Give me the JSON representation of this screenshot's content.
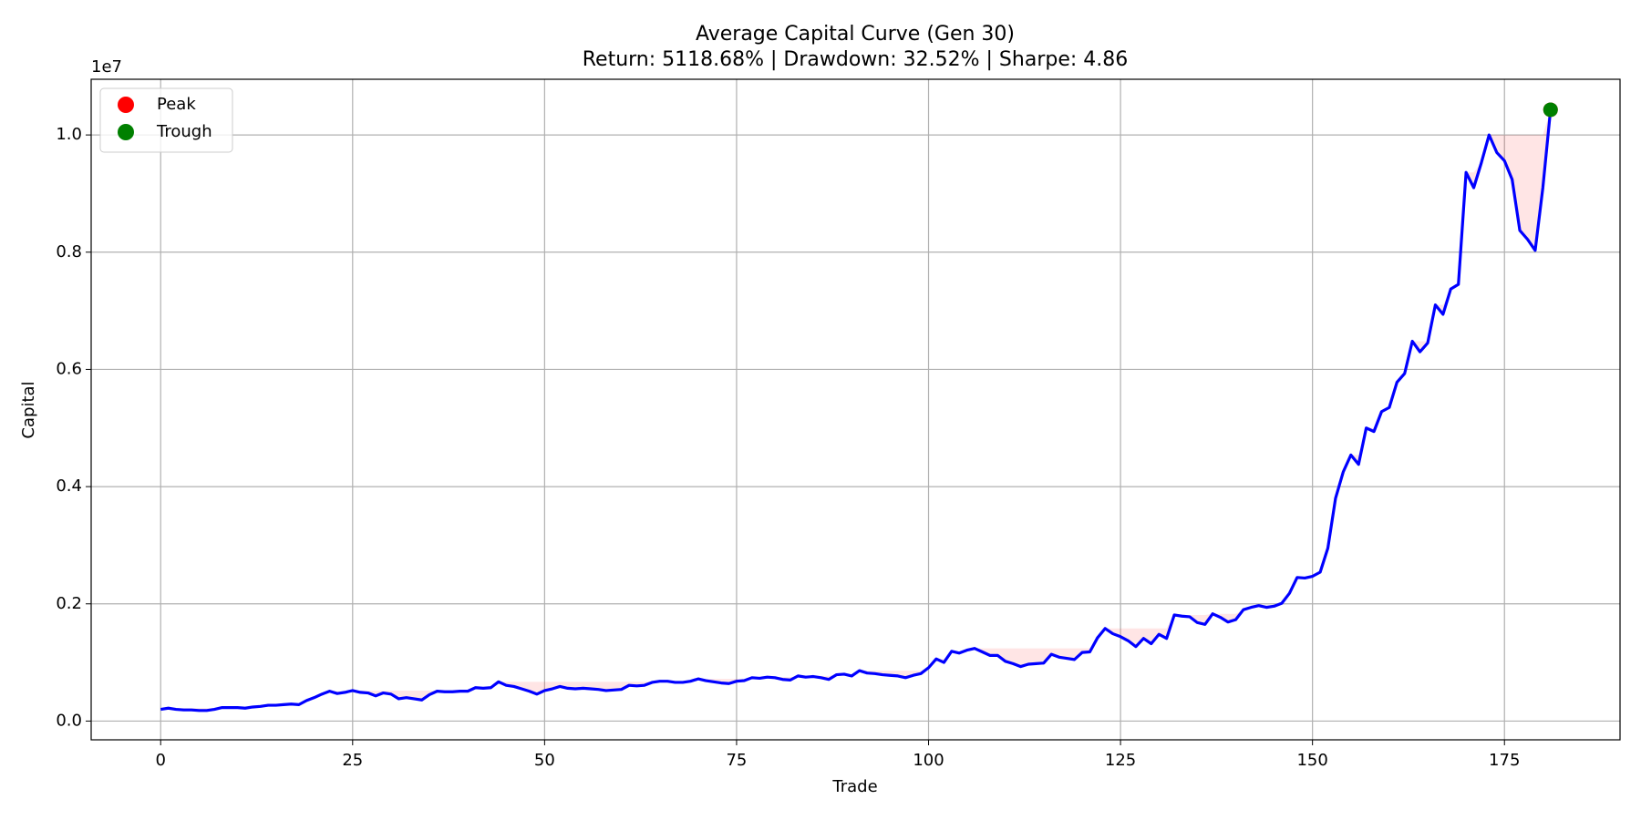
{
  "chart_data": {
    "type": "line",
    "title": "Average Capital Curve (Gen 30)",
    "subtitle": "Return: 5118.68% | Drawdown: 32.52% | Sharpe: 4.86",
    "x_label": "Trade",
    "y_label": "Capital",
    "y_offset_label": "1e7",
    "xlim": [
      -9.05,
      190.05
    ],
    "xticks": [
      0,
      25,
      50,
      75,
      100,
      125,
      150,
      175
    ],
    "ylim": [
      -0.032,
      1.095
    ],
    "yticks": [
      {
        "value": 0,
        "label": "0.0"
      },
      0.2,
      0.4,
      0.6,
      0.8,
      {
        "value": 1,
        "label": "1.0"
      }
    ],
    "grid": true,
    "legend": "upper left",
    "drawdown_fill": {
      "color": "red",
      "alpha": 0.1
    },
    "series": [
      {
        "color": "blue",
        "values": [
          0.02,
          0.022,
          0.02,
          0.019,
          0.019,
          0.018,
          0.018,
          0.02,
          0.023,
          0.023,
          0.023,
          0.022,
          0.024,
          0.025,
          0.027,
          0.027,
          0.028,
          0.029,
          0.028,
          0.035,
          0.04,
          0.046,
          0.051,
          0.047,
          0.049,
          0.052,
          0.049,
          0.048,
          0.043,
          0.048,
          0.046,
          0.038,
          0.04,
          0.038,
          0.036,
          0.045,
          0.051,
          0.05,
          0.05,
          0.051,
          0.051,
          0.057,
          0.056,
          0.057,
          0.067,
          0.061,
          0.059,
          0.055,
          0.051,
          0.046,
          0.052,
          0.055,
          0.059,
          0.056,
          0.055,
          0.056,
          0.055,
          0.054,
          0.052,
          0.053,
          0.054,
          0.061,
          0.06,
          0.061,
          0.066,
          0.068,
          0.068,
          0.066,
          0.066,
          0.068,
          0.072,
          0.069,
          0.067,
          0.065,
          0.064,
          0.068,
          0.069,
          0.074,
          0.073,
          0.075,
          0.074,
          0.071,
          0.07,
          0.077,
          0.075,
          0.076,
          0.074,
          0.071,
          0.079,
          0.08,
          0.077,
          0.086,
          0.082,
          0.081,
          0.079,
          0.078,
          0.077,
          0.074,
          0.078,
          0.081,
          0.091,
          0.106,
          0.1,
          0.119,
          0.116,
          0.121,
          0.124,
          0.118,
          0.112,
          0.112,
          0.102,
          0.098,
          0.093,
          0.097,
          0.098,
          0.099,
          0.114,
          0.109,
          0.107,
          0.105,
          0.117,
          0.118,
          0.142,
          0.158,
          0.149,
          0.144,
          0.137,
          0.127,
          0.141,
          0.132,
          0.148,
          0.141,
          0.181,
          0.179,
          0.178,
          0.168,
          0.165,
          0.183,
          0.177,
          0.169,
          0.173,
          0.19,
          0.194,
          0.197,
          0.194,
          0.196,
          0.201,
          0.218,
          0.245,
          0.244,
          0.247,
          0.254,
          0.295,
          0.38,
          0.425,
          0.454,
          0.438,
          0.5,
          0.494,
          0.528,
          0.535,
          0.578,
          0.593,
          0.648,
          0.63,
          0.645,
          0.71,
          0.694,
          0.737,
          0.745,
          0.936,
          0.91,
          0.953,
          1.0,
          0.97,
          0.956,
          0.924,
          0.837,
          0.822,
          0.803,
          0.91,
          1.043
        ]
      }
    ],
    "markers": [
      {
        "name": "Peak",
        "color": "red",
        "x": 181,
        "value": 1.043
      },
      {
        "name": "Trough",
        "color": "green",
        "x": 181,
        "value": 1.043
      }
    ]
  }
}
